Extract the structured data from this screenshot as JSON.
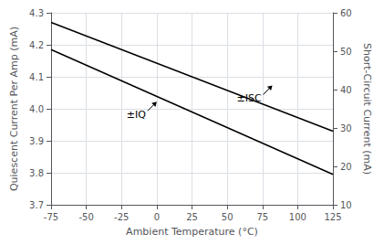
{
  "chart_data": {
    "type": "line",
    "xlabel": "Ambient Temperature (°C)",
    "ylabel": "Quiescent Current Per Amp (mA)",
    "y2label": "Short-Circuit Current (mA)",
    "x": [
      -75,
      125
    ],
    "series": [
      {
        "color": "#000000",
        "values": [
          4.185,
          3.795
        ]
      },
      {
        "color": "#000000",
        "values": [
          4.27,
          3.93
        ]
      }
    ],
    "xlim": [
      -75,
      125
    ],
    "xticks": [
      -75,
      -50,
      -25,
      0,
      25,
      50,
      75,
      100,
      125
    ],
    "ylim": [
      3.7,
      4.3
    ],
    "yticks": [
      3.7,
      3.8,
      3.9,
      {
        "value": 4,
        "label": "4.0"
      },
      4.1,
      4.2,
      4.3
    ],
    "y2lim": [
      10,
      60
    ],
    "y2ticks": [
      10,
      20,
      30,
      40,
      50,
      60
    ],
    "grid": true,
    "annotations": [
      {
        "text": "±IQ",
        "x": 0,
        "y": 4.022
      },
      {
        "text": "±ISC",
        "x": 82,
        "y": 4.073
      }
    ]
  }
}
